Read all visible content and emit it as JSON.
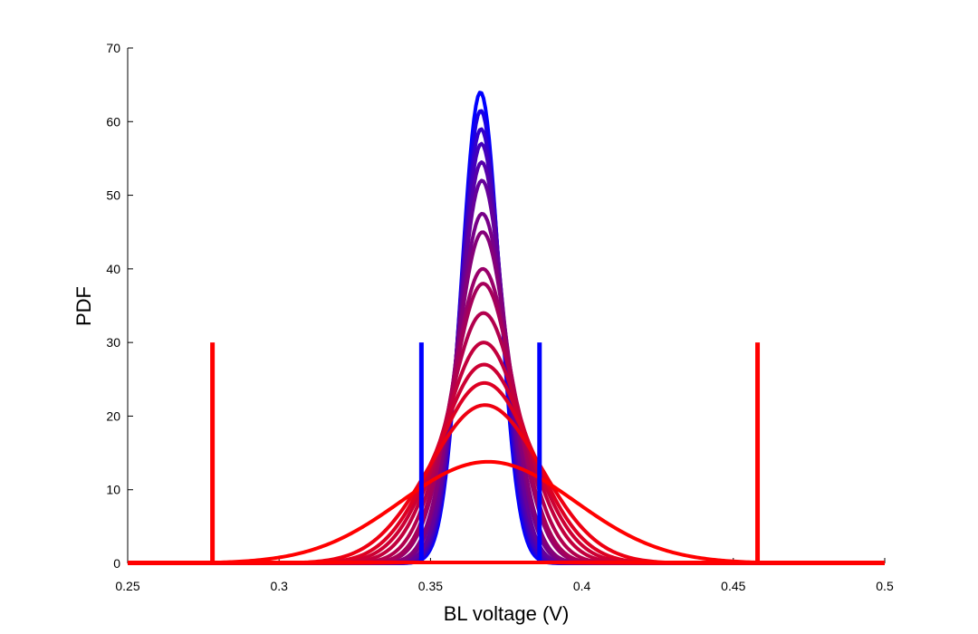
{
  "chart_data": {
    "type": "line",
    "xlabel": "BL voltage (V)",
    "ylabel": "PDF",
    "xlim": [
      0.25,
      0.5
    ],
    "ylim": [
      0,
      70
    ],
    "xticks": [
      "0.25",
      "0.3",
      "0.35",
      "0.4",
      "0.45",
      "0.5"
    ],
    "yticks": [
      "0",
      "10",
      "20",
      "30",
      "40",
      "50",
      "60",
      "70"
    ],
    "grid": false,
    "legend": "none",
    "color_start": "#0000ff",
    "color_end": "#ff0000",
    "series": [
      {
        "mean": 0.3665,
        "peak": 64.0,
        "color": "#0000ff"
      },
      {
        "mean": 0.3666,
        "peak": 61.5,
        "color": "#1a00e5"
      },
      {
        "mean": 0.3667,
        "peak": 59.0,
        "color": "#3300cc"
      },
      {
        "mean": 0.3668,
        "peak": 57.0,
        "color": "#4400bb"
      },
      {
        "mean": 0.3669,
        "peak": 54.5,
        "color": "#5500aa"
      },
      {
        "mean": 0.367,
        "peak": 52.0,
        "color": "#66009a"
      },
      {
        "mean": 0.3671,
        "peak": 47.5,
        "color": "#770088"
      },
      {
        "mean": 0.3672,
        "peak": 45.0,
        "color": "#850079"
      },
      {
        "mean": 0.3673,
        "peak": 40.0,
        "color": "#99006a"
      },
      {
        "mean": 0.3674,
        "peak": 38.0,
        "color": "#a5005a"
      },
      {
        "mean": 0.3675,
        "peak": 34.0,
        "color": "#b2004d"
      },
      {
        "mean": 0.3676,
        "peak": 30.0,
        "color": "#c2003d"
      },
      {
        "mean": 0.3677,
        "peak": 27.0,
        "color": "#cc0033"
      },
      {
        "mean": 0.3678,
        "peak": 24.5,
        "color": "#dd0022"
      },
      {
        "mean": 0.368,
        "peak": 21.5,
        "color": "#ee0011"
      },
      {
        "mean": 0.369,
        "peak": 13.8,
        "color": "#ff0000"
      }
    ],
    "markers": [
      {
        "x": 0.347,
        "y": 30,
        "color": "#0000ff"
      },
      {
        "x": 0.386,
        "y": 30,
        "color": "#0000ff"
      },
      {
        "x": 0.278,
        "y": 30,
        "color": "#ff0000"
      },
      {
        "x": 0.458,
        "y": 30,
        "color": "#ff0000"
      }
    ]
  }
}
